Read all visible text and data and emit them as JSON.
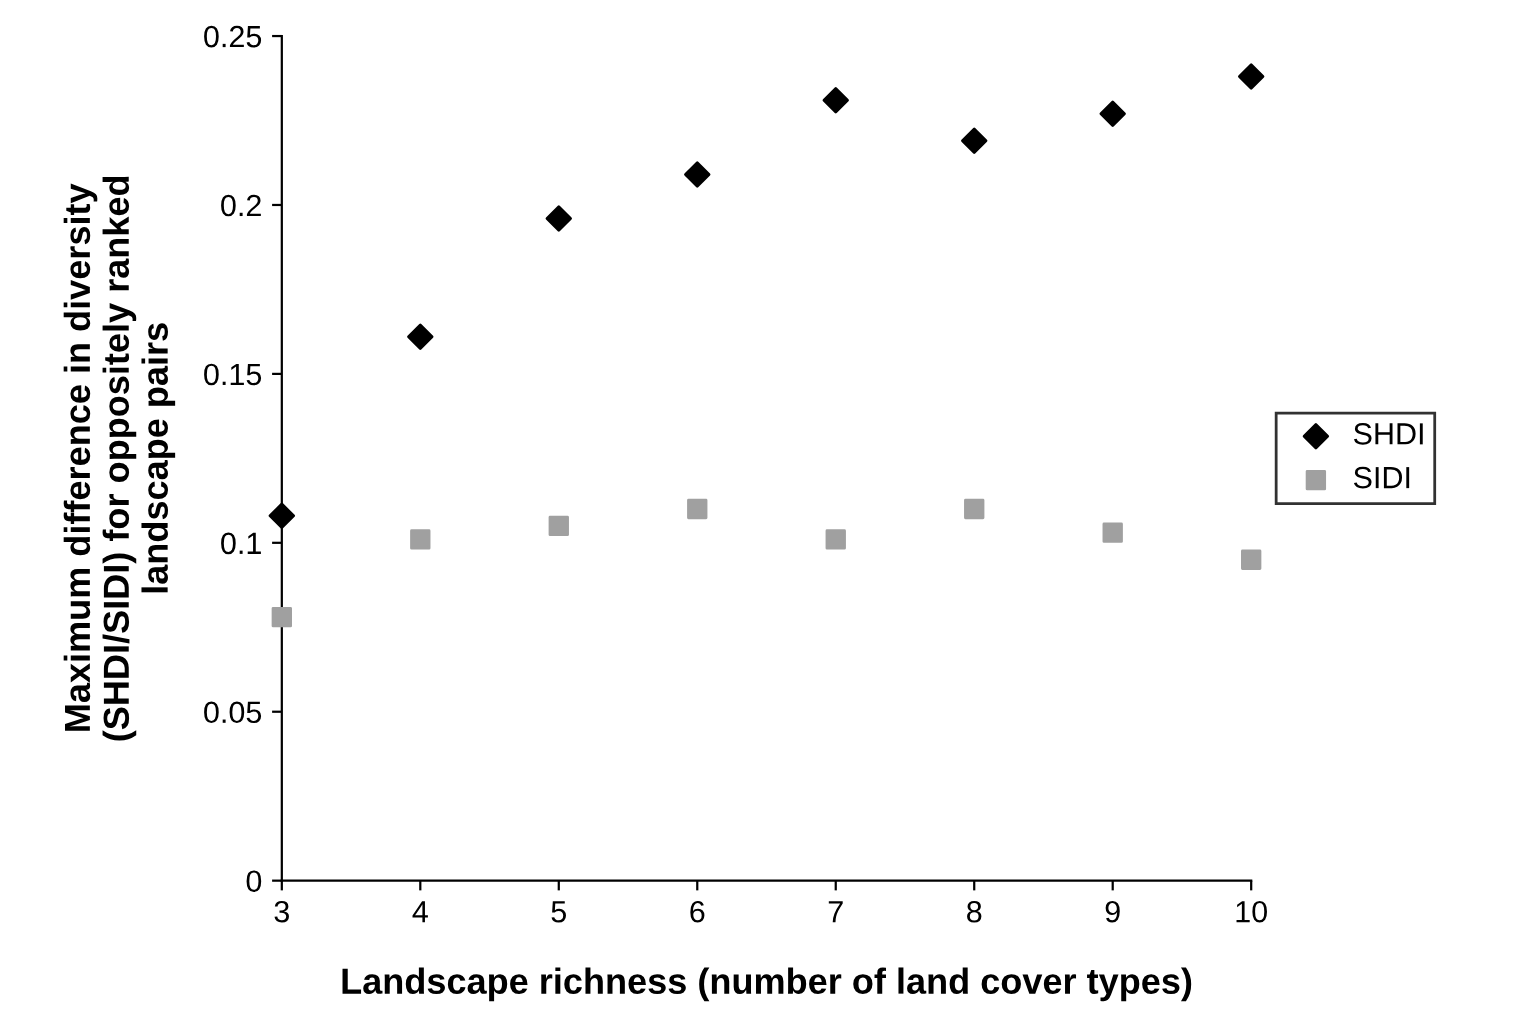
{
  "chart_data": {
    "type": "scatter",
    "xlabel": "Landscape richness (number of land cover types)",
    "ylabel": "Maximum difference in diversity\n(SHDI/SIDI) for oppositely ranked\nlandscape pairs",
    "x": [
      3,
      4,
      5,
      6,
      7,
      8,
      9,
      10
    ],
    "series": [
      {
        "name": "SHDI",
        "color": "#000000",
        "marker": "diamond",
        "values": [
          0.108,
          0.161,
          0.196,
          0.209,
          0.231,
          0.219,
          0.227,
          0.238
        ]
      },
      {
        "name": "SIDI",
        "color": "#a0a0a0",
        "marker": "square",
        "values": [
          0.078,
          0.101,
          0.105,
          0.11,
          0.101,
          0.11,
          0.103,
          0.095
        ]
      }
    ],
    "xlim": [
      3,
      10
    ],
    "xticks": [
      3,
      4,
      5,
      6,
      7,
      8,
      9,
      10
    ],
    "ylim": [
      0,
      0.25
    ],
    "yticks": [
      0,
      0.05,
      0.1,
      0.15,
      0.2,
      0.25
    ],
    "grid": false,
    "legend": "right"
  }
}
